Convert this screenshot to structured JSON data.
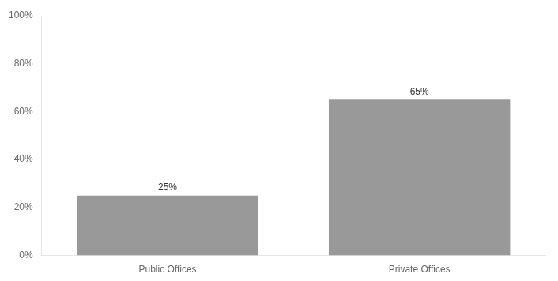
{
  "chart_data": {
    "type": "bar",
    "categories": [
      "Public Offices",
      "Private Offices"
    ],
    "values": [
      25,
      65
    ],
    "value_labels": [
      "25%",
      "65%"
    ],
    "data_labels": true,
    "color": "#999999",
    "ylim": [
      0,
      100
    ],
    "yticks": [
      {
        "value": 0,
        "label": "0%"
      },
      {
        "value": 20,
        "label": "20%"
      },
      {
        "value": 40,
        "label": "40%"
      },
      {
        "value": 60,
        "label": "60%"
      },
      {
        "value": 80,
        "label": "80%"
      },
      {
        "value": 100,
        "label": "100%"
      }
    ],
    "grid": false
  }
}
